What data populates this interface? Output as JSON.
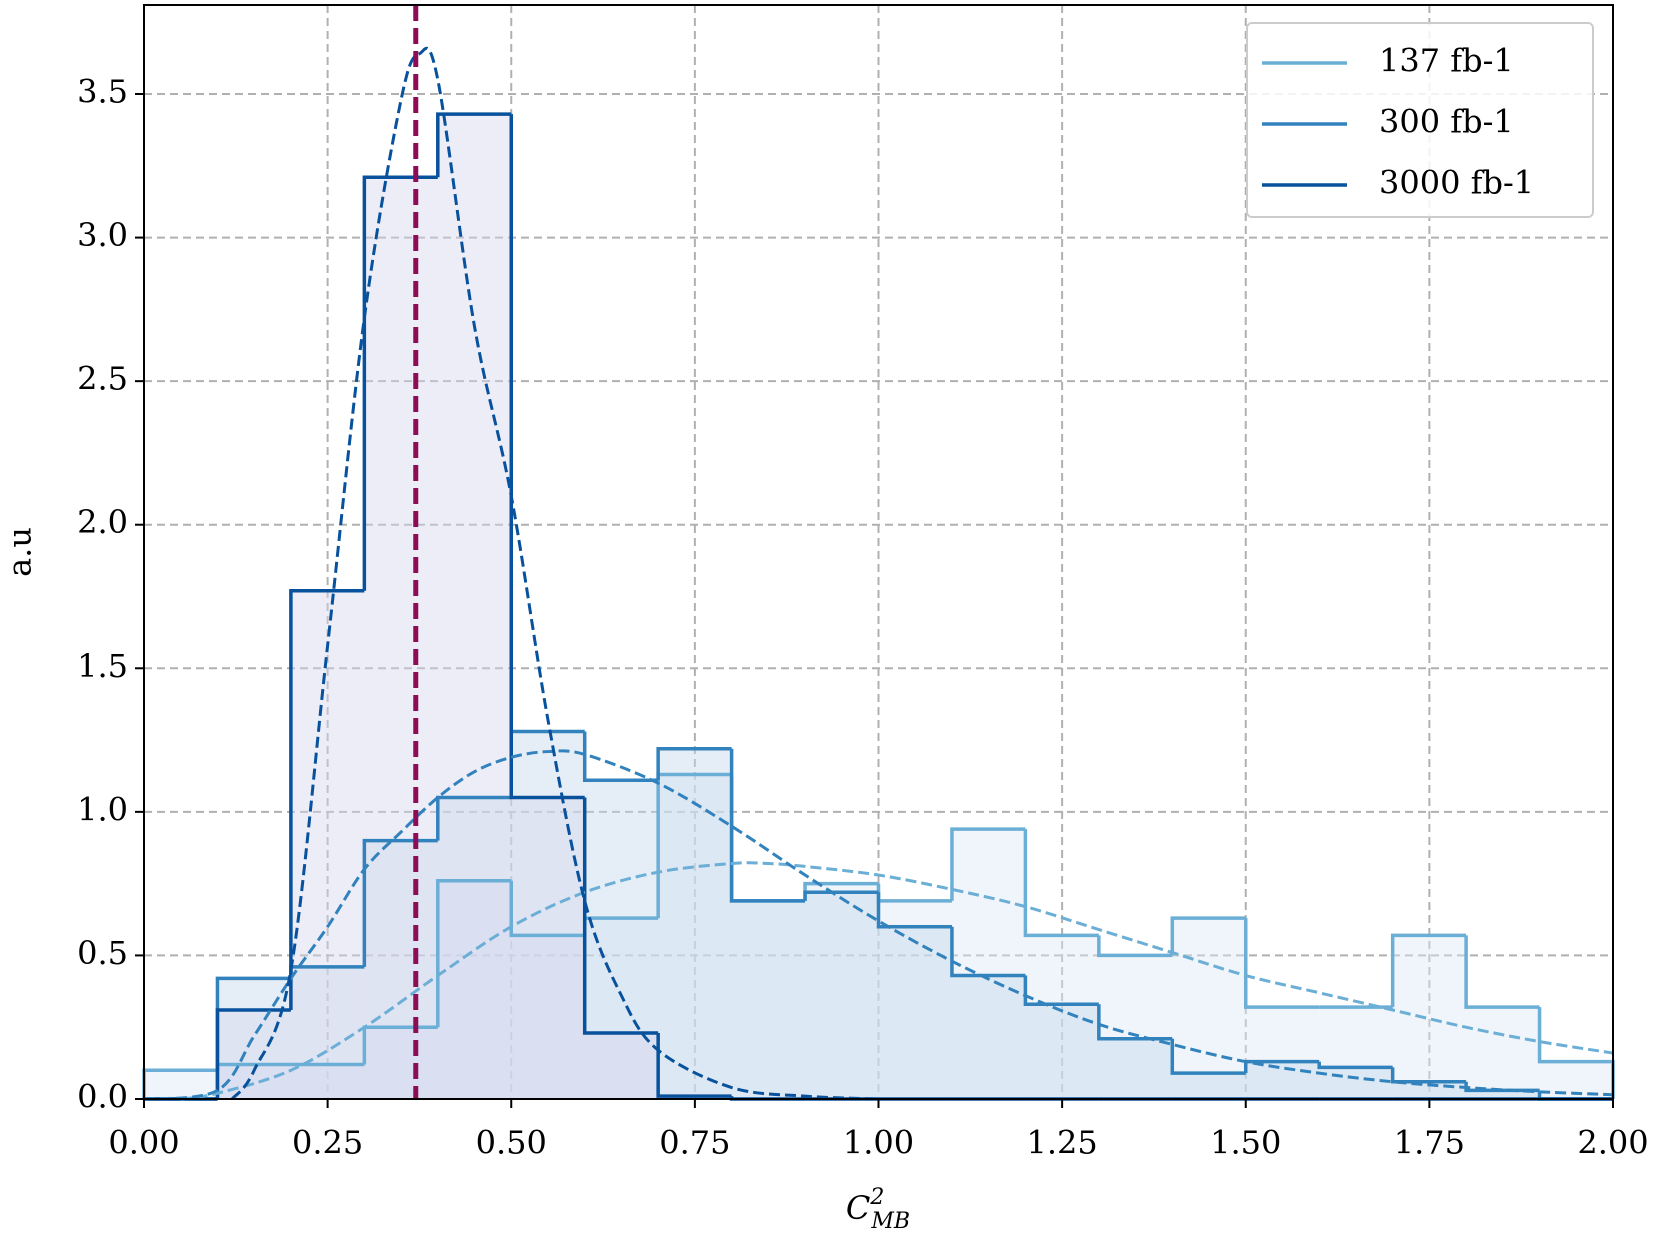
{
  "chart_data": {
    "type": "histogram",
    "ylabel": "a.u",
    "xlabel": {
      "base": "C",
      "sup": "2",
      "sub": "MB"
    },
    "bins": [
      0.0,
      0.1,
      0.2,
      0.3,
      0.4,
      0.5,
      0.6,
      0.7,
      0.8,
      0.9,
      1.0,
      1.1,
      1.2,
      1.3,
      1.4,
      1.5,
      1.6,
      1.7,
      1.8,
      1.9,
      2.0
    ],
    "series": [
      {
        "name": "137 fb-1",
        "color": "#6baed6",
        "fill": "#dbe8f5",
        "values": [
          0.1,
          0.12,
          0.12,
          0.25,
          0.76,
          0.57,
          0.63,
          1.13,
          0.69,
          0.75,
          0.69,
          0.94,
          0.57,
          0.5,
          0.63,
          0.32,
          0.32,
          0.57,
          0.32,
          0.13
        ],
        "fit": {
          "x": [
            0.05,
            0.1,
            0.2,
            0.3,
            0.4,
            0.5,
            0.6,
            0.7,
            0.8,
            0.85,
            0.9,
            1.0,
            1.1,
            1.2,
            1.3,
            1.4,
            1.5,
            1.6,
            1.7,
            1.8,
            1.9,
            2.0
          ],
          "y": [
            0.0,
            0.02,
            0.1,
            0.25,
            0.43,
            0.6,
            0.72,
            0.79,
            0.82,
            0.82,
            0.81,
            0.78,
            0.73,
            0.67,
            0.59,
            0.51,
            0.43,
            0.37,
            0.31,
            0.25,
            0.2,
            0.16
          ]
        }
      },
      {
        "name": "300 fb-1",
        "color": "#3182bd",
        "fill": "#c6d9ee",
        "values": [
          0.0,
          0.42,
          0.46,
          0.9,
          1.05,
          1.28,
          1.11,
          1.22,
          0.69,
          0.72,
          0.6,
          0.43,
          0.33,
          0.21,
          0.09,
          0.13,
          0.11,
          0.06,
          0.03,
          0.0
        ],
        "fit": {
          "x": [
            0.0,
            0.1,
            0.15,
            0.2,
            0.25,
            0.3,
            0.35,
            0.4,
            0.45,
            0.5,
            0.55,
            0.6,
            0.7,
            0.8,
            0.9,
            1.0,
            1.1,
            1.2,
            1.3,
            1.4,
            1.5,
            1.6,
            1.7,
            1.8,
            1.9,
            2.0
          ],
          "y": [
            0.0,
            0.03,
            0.22,
            0.42,
            0.6,
            0.8,
            0.93,
            1.05,
            1.14,
            1.19,
            1.21,
            1.2,
            1.1,
            0.95,
            0.78,
            0.62,
            0.48,
            0.36,
            0.26,
            0.19,
            0.13,
            0.09,
            0.06,
            0.04,
            0.025,
            0.015
          ]
        }
      },
      {
        "name": "3000 fb-1",
        "color": "#08519c",
        "fill": "#d8d8ee",
        "values": [
          0.0,
          0.31,
          1.77,
          3.21,
          3.43,
          1.05,
          0.23,
          0.01,
          0.0,
          0.0,
          0.0,
          0.0,
          0.0,
          0.0,
          0.0,
          0.0,
          0.0,
          0.0,
          0.0,
          0.0
        ],
        "fit": {
          "x": [
            0.12,
            0.15,
            0.2,
            0.25,
            0.3,
            0.35,
            0.375,
            0.4,
            0.45,
            0.5,
            0.55,
            0.6,
            0.65,
            0.7,
            0.8,
            0.9,
            1.0
          ],
          "y": [
            0.0,
            0.1,
            0.45,
            1.58,
            2.72,
            3.48,
            3.64,
            3.55,
            2.69,
            2.1,
            1.32,
            0.69,
            0.36,
            0.17,
            0.04,
            0.01,
            0.0
          ]
        }
      }
    ],
    "vline": {
      "x": 0.37,
      "color": "#8e0b55"
    },
    "xlim": [
      0.0,
      2.0
    ],
    "ylim": [
      0.0,
      3.81
    ],
    "xticks": [
      {
        "value": 0,
        "label": "0.00"
      },
      {
        "value": 0.25,
        "label": "0.25"
      },
      {
        "value": 0.5,
        "label": "0.50"
      },
      {
        "value": 0.75,
        "label": "0.75"
      },
      {
        "value": 1,
        "label": "1.00"
      },
      {
        "value": 1.25,
        "label": "1.25"
      },
      {
        "value": 1.5,
        "label": "1.50"
      },
      {
        "value": 1.75,
        "label": "1.75"
      },
      {
        "value": 2,
        "label": "2.00"
      }
    ],
    "yticks": [
      {
        "value": 0,
        "label": "0.0"
      },
      {
        "value": 0.5,
        "label": "0.5"
      },
      {
        "value": 1,
        "label": "1.0"
      },
      {
        "value": 1.5,
        "label": "1.5"
      },
      {
        "value": 2,
        "label": "2.0"
      },
      {
        "value": 2.5,
        "label": "2.5"
      },
      {
        "value": 3,
        "label": "3.0"
      },
      {
        "value": 3.5,
        "label": "3.5"
      }
    ],
    "grid": true,
    "legend": "upper right"
  }
}
